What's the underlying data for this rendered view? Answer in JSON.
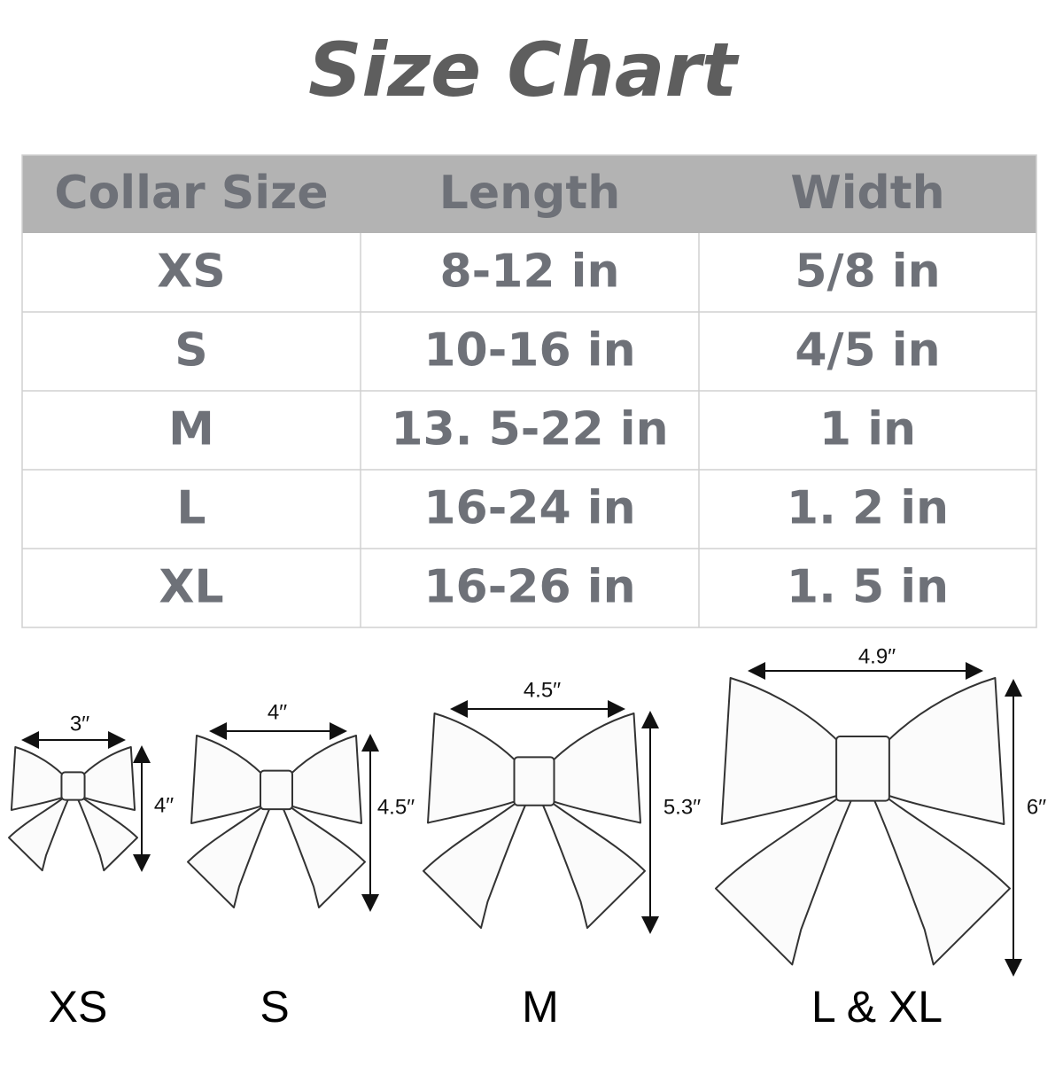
{
  "title": "Size Chart",
  "table": {
    "header": [
      "Collar Size",
      "Length",
      "Width"
    ],
    "rows": [
      [
        "XS",
        "8-12 in",
        "5/8 in"
      ],
      [
        "S",
        "10-16 in",
        "4/5 in"
      ],
      [
        "M",
        "13. 5-22 in",
        "1 in"
      ],
      [
        "L",
        "16-24 in",
        "1. 2 in"
      ],
      [
        "XL",
        "16-26 in",
        "1. 5 in"
      ]
    ]
  },
  "bows": [
    {
      "label": "XS",
      "width": "3′′",
      "height": "4′′"
    },
    {
      "label": "S",
      "width": "4′′",
      "height": "4.5′′"
    },
    {
      "label": "M",
      "width": "4.5′′",
      "height": "5.3′′"
    },
    {
      "label": "L & XL",
      "width": "4.9′′",
      "height": "6′′"
    }
  ]
}
